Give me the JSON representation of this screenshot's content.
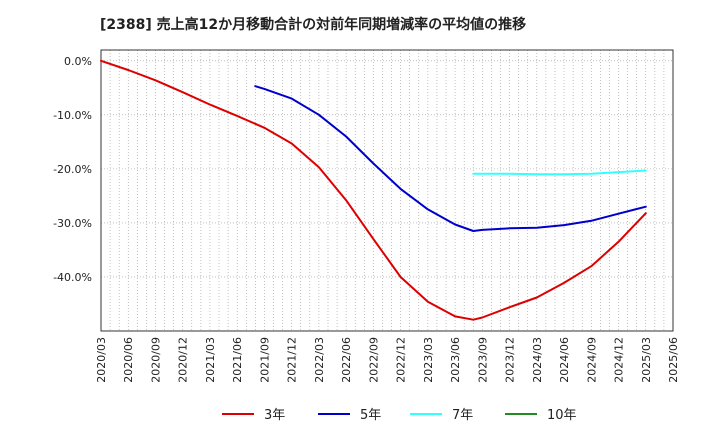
{
  "chart_data": {
    "type": "line",
    "title": "[2388]  売上高12か月移動合計の対前年同期増減率の平均値の推移",
    "xlabel": "",
    "ylabel": "",
    "ylim": [
      -0.5,
      0.02
    ],
    "y_ticks": [
      {
        "value": 0,
        "label": "0.0%"
      },
      {
        "value": -0.1,
        "label": "-10.0%"
      },
      {
        "value": -0.2,
        "label": "-20.0%"
      },
      {
        "value": -0.3,
        "label": "-30.0%"
      },
      {
        "value": -0.4,
        "label": "-40.0%"
      }
    ],
    "x_ticks": [
      "2020/03",
      "2020/06",
      "2020/09",
      "2020/12",
      "2021/03",
      "2021/06",
      "2021/09",
      "2021/12",
      "2022/03",
      "2022/06",
      "2022/09",
      "2022/12",
      "2023/03",
      "2023/06",
      "2023/09",
      "2023/12",
      "2024/03",
      "2024/06",
      "2024/09",
      "2024/12",
      "2025/03",
      "2025/06"
    ],
    "grid": true,
    "legend_position": "bottom",
    "series": [
      {
        "name": "3年",
        "color": "#dd0000",
        "points": [
          [
            "2020/03",
            0.0
          ],
          [
            "2020/06",
            -0.017
          ],
          [
            "2020/09",
            -0.036
          ],
          [
            "2020/12",
            -0.058
          ],
          [
            "2021/03",
            -0.081
          ],
          [
            "2021/06",
            -0.102
          ],
          [
            "2021/09",
            -0.124
          ],
          [
            "2021/12",
            -0.153
          ],
          [
            "2022/03",
            -0.197
          ],
          [
            "2022/06",
            -0.258
          ],
          [
            "2022/09",
            -0.33
          ],
          [
            "2022/12",
            -0.4
          ],
          [
            "2023/03",
            -0.446
          ],
          [
            "2023/06",
            -0.473
          ],
          [
            "2023/08",
            -0.479
          ],
          [
            "2023/09",
            -0.475
          ],
          [
            "2023/12",
            -0.456
          ],
          [
            "2024/03",
            -0.438
          ],
          [
            "2024/06",
            -0.411
          ],
          [
            "2024/09",
            -0.38
          ],
          [
            "2024/12",
            -0.335
          ],
          [
            "2025/03",
            -0.282
          ]
        ]
      },
      {
        "name": "5年",
        "color": "#0000cc",
        "points": [
          [
            "2021/08",
            -0.047
          ],
          [
            "2021/09",
            -0.052
          ],
          [
            "2021/12",
            -0.07
          ],
          [
            "2022/03",
            -0.1
          ],
          [
            "2022/06",
            -0.14
          ],
          [
            "2022/09",
            -0.19
          ],
          [
            "2022/12",
            -0.237
          ],
          [
            "2023/03",
            -0.275
          ],
          [
            "2023/06",
            -0.303
          ],
          [
            "2023/08",
            -0.315
          ],
          [
            "2023/09",
            -0.313
          ],
          [
            "2023/12",
            -0.31
          ],
          [
            "2024/03",
            -0.309
          ],
          [
            "2024/06",
            -0.304
          ],
          [
            "2024/09",
            -0.296
          ],
          [
            "2024/12",
            -0.283
          ],
          [
            "2025/03",
            -0.27
          ]
        ]
      },
      {
        "name": "7年",
        "color": "#33ffff",
        "points": [
          [
            "2023/08",
            -0.209
          ],
          [
            "2023/12",
            -0.209
          ],
          [
            "2024/03",
            -0.21
          ],
          [
            "2024/06",
            -0.21
          ],
          [
            "2024/09",
            -0.209
          ],
          [
            "2024/12",
            -0.206
          ],
          [
            "2025/03",
            -0.203
          ]
        ]
      },
      {
        "name": "10年",
        "color": "#228b22",
        "points": []
      }
    ]
  }
}
